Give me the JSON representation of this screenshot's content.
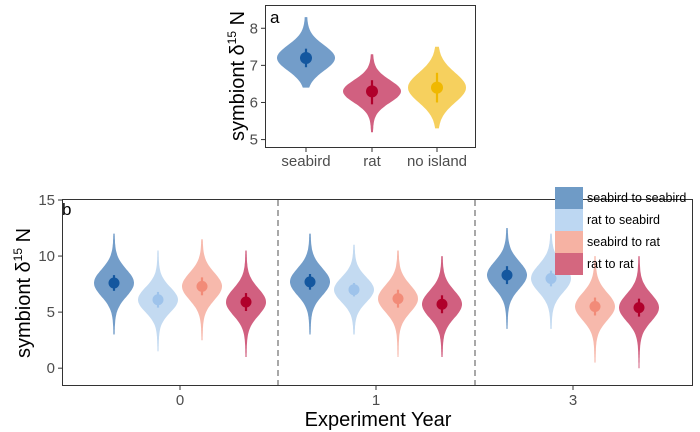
{
  "chart_data": [
    {
      "type": "violin",
      "panel_label": "a",
      "ylabel_text": "symbiont δ",
      "ylabel_superscript": "15",
      "ylabel_suffix": " N",
      "ylim": [
        4.8,
        8.6
      ],
      "yticks": [
        5,
        6,
        7,
        8
      ],
      "categories": [
        "seabird",
        "rat",
        "no island"
      ],
      "colors": [
        "#5b8cbf",
        "#c9446a",
        "#f5c842"
      ],
      "point_colors": [
        "#14579f",
        "#b0002b",
        "#f0b800"
      ],
      "series": [
        {
          "category": "seabird",
          "mean": 7.2,
          "lo": 6.95,
          "hi": 7.45,
          "spread": 0.34,
          "min": 6.4,
          "max": 8.3
        },
        {
          "category": "rat",
          "mean": 6.3,
          "lo": 5.95,
          "hi": 6.6,
          "spread": 0.3,
          "min": 5.2,
          "max": 7.3
        },
        {
          "category": "no island",
          "mean": 6.4,
          "lo": 6.0,
          "hi": 6.8,
          "spread": 0.4,
          "min": 5.3,
          "max": 7.5
        }
      ]
    },
    {
      "type": "violin",
      "panel_label": "b",
      "ylabel_text": "symbiont δ",
      "ylabel_superscript": "15",
      "ylabel_suffix": " N",
      "xlabel": "Experiment Year",
      "ylim": [
        -1.5,
        15
      ],
      "yticks": [
        0,
        5,
        10,
        15
      ],
      "categories": [
        "0",
        "1",
        "3"
      ],
      "legend": {
        "position": "top-right",
        "entries": [
          "seabird to seabird",
          "rat to seabird",
          "seabird to rat",
          "rat to rat"
        ],
        "colors": [
          "#6f9bc6",
          "#bdd7f2",
          "#f6b2a3",
          "#d4677f"
        ]
      },
      "series": [
        {
          "name": "seabird to seabird",
          "color": "#5b8cbf",
          "point": "#14579f",
          "values": [
            {
              "year": "0",
              "mean": 7.6,
              "lo": 6.9,
              "hi": 8.3,
              "spread": 1.2,
              "min": 3.0,
              "max": 12.0
            },
            {
              "year": "1",
              "mean": 7.7,
              "lo": 7.0,
              "hi": 8.4,
              "spread": 1.2,
              "min": 3.0,
              "max": 12.0
            },
            {
              "year": "3",
              "mean": 8.3,
              "lo": 7.5,
              "hi": 9.1,
              "spread": 1.2,
              "min": 3.5,
              "max": 12.5
            }
          ]
        },
        {
          "name": "rat to seabird",
          "color": "#b9d4ef",
          "point": "#9ec3eb",
          "values": [
            {
              "year": "0",
              "mean": 6.1,
              "lo": 5.4,
              "hi": 6.8,
              "spread": 1.1,
              "min": 1.5,
              "max": 10.5
            },
            {
              "year": "1",
              "mean": 7.0,
              "lo": 6.4,
              "hi": 7.6,
              "spread": 1.1,
              "min": 3.0,
              "max": 11.0
            },
            {
              "year": "3",
              "mean": 8.0,
              "lo": 7.3,
              "hi": 8.7,
              "spread": 1.2,
              "min": 3.5,
              "max": 12.0
            }
          ]
        },
        {
          "name": "seabird to rat",
          "color": "#f6ad9e",
          "point": "#f28b78",
          "values": [
            {
              "year": "0",
              "mean": 7.3,
              "lo": 6.5,
              "hi": 8.1,
              "spread": 1.2,
              "min": 2.5,
              "max": 11.5
            },
            {
              "year": "1",
              "mean": 6.2,
              "lo": 5.4,
              "hi": 7.0,
              "spread": 1.2,
              "min": 1.0,
              "max": 10.5
            },
            {
              "year": "3",
              "mean": 5.5,
              "lo": 4.7,
              "hi": 6.3,
              "spread": 1.2,
              "min": 0.5,
              "max": 10.0
            }
          ]
        },
        {
          "name": "rat to rat",
          "color": "#c9446a",
          "point": "#b0002b",
          "values": [
            {
              "year": "0",
              "mean": 5.9,
              "lo": 5.1,
              "hi": 6.7,
              "spread": 1.2,
              "min": 1.0,
              "max": 10.5
            },
            {
              "year": "1",
              "mean": 5.7,
              "lo": 4.9,
              "hi": 6.5,
              "spread": 1.2,
              "min": 1.0,
              "max": 10.0
            },
            {
              "year": "3",
              "mean": 5.4,
              "lo": 4.6,
              "hi": 6.2,
              "spread": 1.2,
              "min": 0.0,
              "max": 10.0
            }
          ]
        }
      ]
    }
  ]
}
